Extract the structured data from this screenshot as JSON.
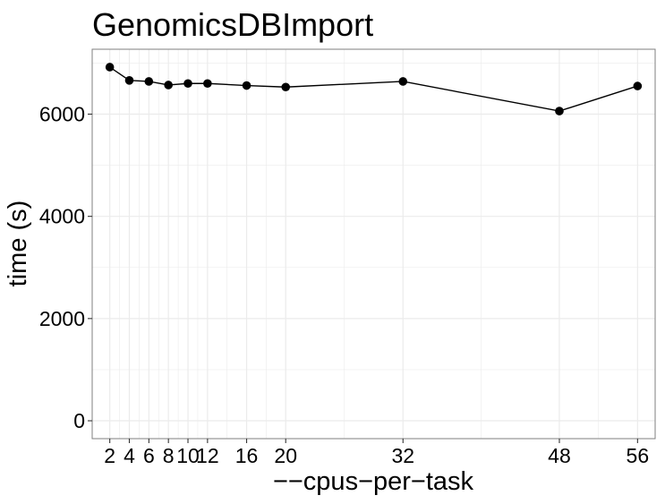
{
  "chart_data": {
    "type": "line",
    "title": "GenomicsDBImport",
    "xlabel": "−−cpus−per−task",
    "ylabel": "time (s)",
    "x": [
      2,
      4,
      6,
      8,
      10,
      12,
      16,
      20,
      32,
      48,
      56
    ],
    "x_tick_labels": [
      "2",
      "4",
      "6",
      "8",
      "10",
      "12",
      "16",
      "20",
      "32",
      "48",
      "56"
    ],
    "y_ticks": [
      0,
      2000,
      4000,
      6000
    ],
    "y_tick_labels": [
      "0",
      "2000",
      "4000",
      "6000"
    ],
    "xlim": [
      0.2,
      57.8
    ],
    "ylim": [
      -350,
      7270
    ],
    "series": [
      {
        "values": [
          6920,
          6660,
          6640,
          6570,
          6600,
          6600,
          6560,
          6530,
          6640,
          6060,
          6550
        ]
      }
    ],
    "grid": true,
    "legend": "none",
    "colors": {
      "line": "#000000",
      "point": "#000000",
      "grid": "#ebebeb",
      "panel_border": "#7f7f7f"
    }
  }
}
